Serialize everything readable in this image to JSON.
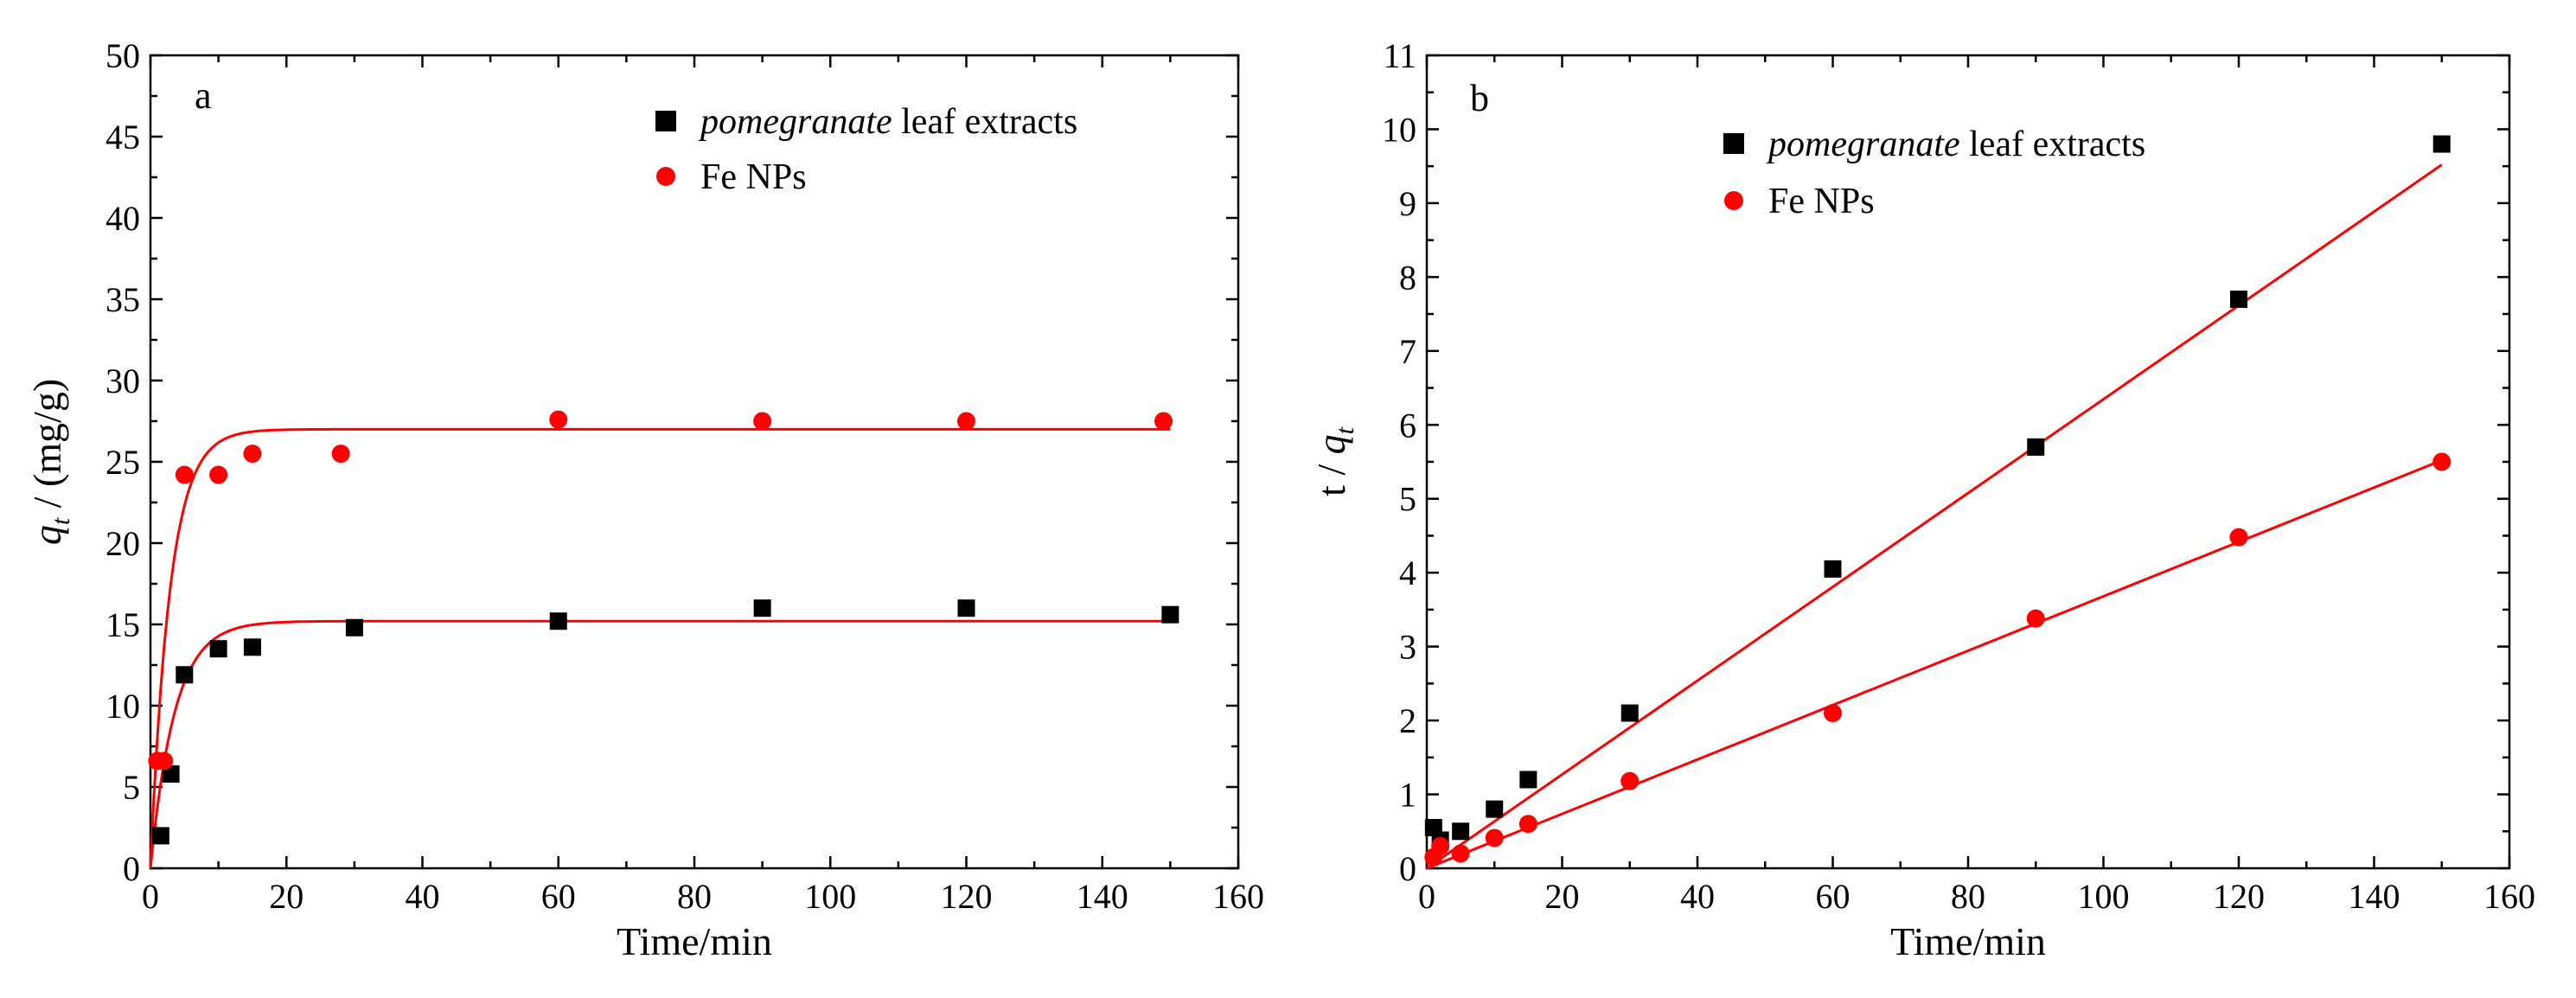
{
  "chart_data": [
    {
      "type": "scatter",
      "panel_label": "a",
      "xlabel": "Time/min",
      "ylabel_main": "q",
      "ylabel_sub": "t",
      "ylabel_rest": " / (mg/g)",
      "xlim": [
        0,
        160
      ],
      "ylim": [
        0,
        50
      ],
      "xticks": [
        0,
        20,
        40,
        60,
        80,
        100,
        120,
        140,
        160
      ],
      "yticks": [
        0,
        5,
        10,
        15,
        20,
        25,
        30,
        35,
        40,
        45,
        50
      ],
      "legend": {
        "position": "top-right",
        "entries": [
          {
            "italic": "pomegranate",
            "text": " leaf extracts",
            "marker": "square",
            "color": "#000000"
          },
          {
            "italic": "",
            "text": "Fe NPs",
            "marker": "circle",
            "color": "#ff0000"
          }
        ]
      },
      "series": [
        {
          "name": "pomegranate leaf extracts",
          "marker": "square",
          "color": "#000000",
          "points": [
            [
              1.5,
              2.0
            ],
            [
              3,
              5.8
            ],
            [
              5,
              11.9
            ],
            [
              10,
              13.5
            ],
            [
              15,
              13.6
            ],
            [
              30,
              14.8
            ],
            [
              60,
              15.2
            ],
            [
              90,
              16.0
            ],
            [
              120,
              16.0
            ],
            [
              150,
              15.6
            ]
          ]
        },
        {
          "name": "Fe NPs",
          "marker": "circle",
          "color": "#ff0000",
          "points": [
            [
              1,
              6.6
            ],
            [
              2,
              6.6
            ],
            [
              5,
              24.2
            ],
            [
              10,
              24.2
            ],
            [
              15,
              25.5
            ],
            [
              28,
              25.5
            ],
            [
              60,
              27.6
            ],
            [
              90,
              27.5
            ],
            [
              120,
              27.5
            ],
            [
              149,
              27.5
            ]
          ]
        }
      ],
      "fits": [
        {
          "name": "fit pomegranate leaf extracts",
          "color": "#ff0000",
          "qe": 15.2,
          "k": 0.28
        },
        {
          "name": "fit Fe NPs",
          "color": "#ff0000",
          "qe": 27.0,
          "k": 0.35
        }
      ]
    },
    {
      "type": "scatter",
      "panel_label": "b",
      "xlabel": "Time/min",
      "ylabel_main": "t / ",
      "ylabel_italic": "q",
      "ylabel_sub": "t",
      "xlim": [
        0,
        160
      ],
      "ylim": [
        0,
        11
      ],
      "xticks": [
        0,
        20,
        40,
        60,
        80,
        100,
        120,
        140,
        160
      ],
      "yticks": [
        0,
        1,
        2,
        3,
        4,
        5,
        6,
        7,
        8,
        9,
        10,
        11
      ],
      "legend": {
        "position": "top-center",
        "entries": [
          {
            "italic": "pomegranate",
            "text": " leaf extracts",
            "marker": "square",
            "color": "#000000"
          },
          {
            "italic": "",
            "text": "Fe NPs",
            "marker": "circle",
            "color": "#ff0000"
          }
        ]
      },
      "series": [
        {
          "name": "pomegranate leaf extracts",
          "marker": "square",
          "color": "#000000",
          "points": [
            [
              1,
              0.55
            ],
            [
              2,
              0.38
            ],
            [
              5,
              0.5
            ],
            [
              10,
              0.8
            ],
            [
              15,
              1.2
            ],
            [
              30,
              2.1
            ],
            [
              60,
              4.05
            ],
            [
              90,
              5.7
            ],
            [
              120,
              7.7
            ],
            [
              150,
              9.8
            ]
          ]
        },
        {
          "name": "Fe NPs",
          "marker": "circle",
          "color": "#ff0000",
          "points": [
            [
              1,
              0.15
            ],
            [
              2,
              0.3
            ],
            [
              5,
              0.2
            ],
            [
              10,
              0.41
            ],
            [
              15,
              0.6
            ],
            [
              30,
              1.18
            ],
            [
              60,
              2.1
            ],
            [
              90,
              3.38
            ],
            [
              120,
              4.48
            ],
            [
              150,
              5.5
            ]
          ]
        }
      ],
      "fits": [
        {
          "name": "fit pomegranate leaf extracts",
          "color": "#ff0000",
          "x": [
            0,
            150
          ],
          "y": [
            0.0,
            9.52
          ]
        },
        {
          "name": "fit Fe NPs",
          "color": "#ff0000",
          "x": [
            0,
            150
          ],
          "y": [
            0.0,
            5.52
          ]
        }
      ]
    }
  ]
}
